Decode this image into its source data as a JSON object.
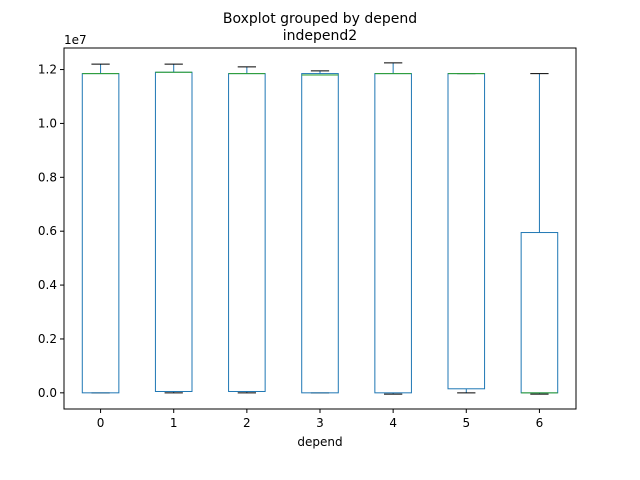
{
  "chart_data": {
    "type": "boxplot",
    "title": "Boxplot grouped by depend",
    "subtitle": "independ2",
    "xlabel": "depend",
    "ylabel": "",
    "y_offset_label": "1e7",
    "y_scale": 10000000,
    "ylim": [
      -0.06,
      1.28
    ],
    "yticks": [
      0.0,
      0.2,
      0.4,
      0.6,
      0.8,
      1.0,
      1.2
    ],
    "ytick_labels": [
      "0.0",
      "0.2",
      "0.4",
      "0.6",
      "0.8",
      "1.0",
      "1.2"
    ],
    "grid": false,
    "categories": [
      "0",
      "1",
      "2",
      "3",
      "4",
      "5",
      "6"
    ],
    "boxes": [
      {
        "category": "0",
        "whislo": 0.0,
        "q1": 0.0,
        "med": 1.185,
        "q3": 1.185,
        "whishi": 1.22
      },
      {
        "category": "1",
        "whislo": 0.0,
        "q1": 0.005,
        "med": 1.19,
        "q3": 1.19,
        "whishi": 1.22
      },
      {
        "category": "2",
        "whislo": 0.0,
        "q1": 0.005,
        "med": 1.185,
        "q3": 1.185,
        "whishi": 1.21
      },
      {
        "category": "3",
        "whislo": 0.0,
        "q1": 0.0,
        "med": 1.18,
        "q3": 1.185,
        "whishi": 1.195
      },
      {
        "category": "4",
        "whislo": -0.005,
        "q1": 0.0,
        "med": 1.185,
        "q3": 1.185,
        "whishi": 1.225
      },
      {
        "category": "5",
        "whislo": 0.0,
        "q1": 0.015,
        "med": 1.185,
        "q3": 1.185,
        "whishi": 1.185
      },
      {
        "category": "6",
        "whislo": -0.005,
        "q1": 0.0,
        "med": 0.0,
        "q3": 0.595,
        "whishi": 1.185
      }
    ],
    "colors": {
      "box": "#1f77b4",
      "median": "#2ca02c",
      "whisker": "#1f77b4",
      "cap": "#000000"
    }
  }
}
